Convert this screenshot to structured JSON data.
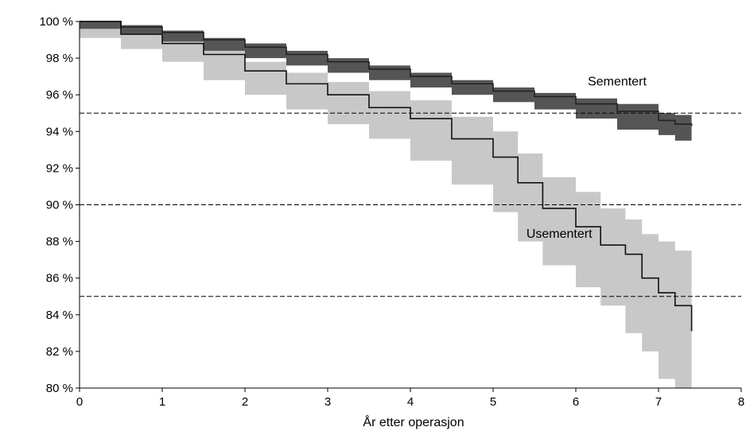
{
  "chart_data": {
    "type": "line",
    "title": "",
    "xlabel": "År etter operasjon",
    "ylabel": "",
    "xlim": [
      0,
      8
    ],
    "ylim": [
      80,
      100
    ],
    "x_ticks": [
      "0",
      "1",
      "2",
      "3",
      "4",
      "5",
      "6",
      "7",
      "8"
    ],
    "y_ticks": [
      "80 %",
      "82 %",
      "84 %",
      "86 %",
      "88 %",
      "90 %",
      "92 %",
      "94 %",
      "96 %",
      "98 %",
      "100 %"
    ],
    "reference_lines": [
      95,
      90,
      85
    ],
    "grid": false,
    "series": [
      {
        "name": "Sementert",
        "color": "#222222",
        "band_color": "#555555",
        "x": [
          0,
          0.5,
          1,
          1.5,
          2,
          2.5,
          3,
          3.5,
          4,
          4.5,
          5,
          5.5,
          6,
          6.5,
          7,
          7.2,
          7.4
        ],
        "y": [
          100,
          99.7,
          99.4,
          99.0,
          98.6,
          98.2,
          97.8,
          97.4,
          97.0,
          96.6,
          96.2,
          95.9,
          95.5,
          95.1,
          94.6,
          94.4,
          94.3
        ],
        "lower": [
          100,
          99.6,
          99.3,
          98.9,
          98.4,
          98.0,
          97.6,
          97.2,
          96.8,
          96.4,
          96.0,
          95.6,
          95.2,
          94.7,
          94.1,
          93.8,
          93.5
        ],
        "upper": [
          100,
          99.8,
          99.5,
          99.1,
          98.8,
          98.4,
          98.0,
          97.6,
          97.2,
          96.8,
          96.4,
          96.1,
          95.8,
          95.5,
          95.0,
          94.9,
          94.8
        ]
      },
      {
        "name": "Usementert",
        "color": "#111111",
        "band_color": "#c8c8c8",
        "x": [
          0,
          0.5,
          1,
          1.5,
          2,
          2.5,
          3,
          3.5,
          4,
          4.5,
          5,
          5.3,
          5.6,
          6,
          6.3,
          6.6,
          6.8,
          7,
          7.2,
          7.4
        ],
        "y": [
          100,
          99.3,
          98.8,
          98.2,
          97.3,
          96.6,
          96.0,
          95.3,
          94.7,
          93.6,
          92.6,
          91.2,
          89.8,
          88.8,
          87.8,
          87.3,
          86.0,
          85.2,
          84.5,
          83.1
        ],
        "lower": [
          100,
          99.1,
          98.5,
          97.8,
          96.8,
          96.0,
          95.2,
          94.4,
          93.6,
          92.4,
          91.1,
          89.6,
          88.0,
          86.7,
          85.5,
          84.5,
          83.0,
          82.0,
          80.5,
          80.0
        ],
        "upper": [
          100,
          99.5,
          99.1,
          98.6,
          97.8,
          97.2,
          96.7,
          96.2,
          95.7,
          94.8,
          94.0,
          92.8,
          91.5,
          90.7,
          89.8,
          89.2,
          88.4,
          88.0,
          87.5,
          87.0
        ]
      }
    ]
  }
}
